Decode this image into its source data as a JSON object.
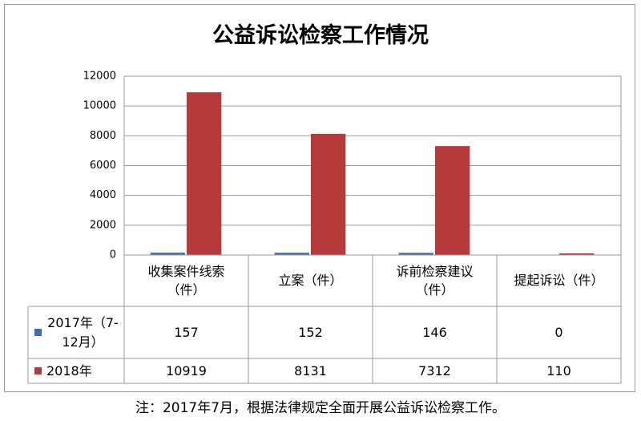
{
  "chart_data": {
    "type": "bar",
    "title": "公益诉讼检察工作情况",
    "categories": [
      "收集案件线索（件）",
      "立案（件）",
      "诉前检察建议（件）",
      "提起诉讼（件）"
    ],
    "series": [
      {
        "name": "2017年（7-12月）",
        "color": "#3f6db3",
        "values": [
          157,
          152,
          146,
          0
        ]
      },
      {
        "name": "2018年",
        "color": "#b63a3a",
        "values": [
          10919,
          8131,
          7312,
          110
        ]
      }
    ],
    "ylim": [
      0,
      12000
    ],
    "yticks": [
      0,
      2000,
      4000,
      6000,
      8000,
      10000,
      12000
    ],
    "grid": true,
    "note": "注：2017年7月，根据法律规定全面开展公益诉讼检察工作。"
  }
}
